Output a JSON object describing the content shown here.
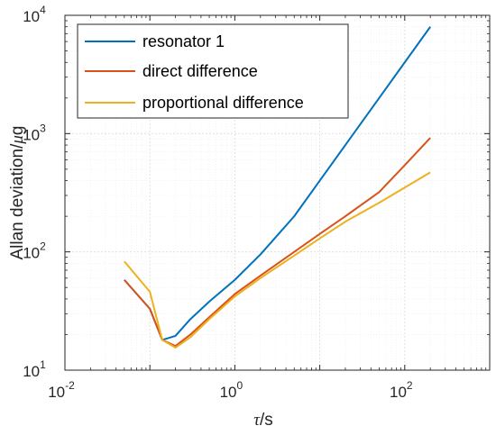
{
  "chart_data": {
    "type": "line",
    "xlabel_italic": "τ",
    "xlabel_rest": "/s",
    "ylabel_main": "Allan deviation/",
    "ylabel_mu": "μ",
    "ylabel_unit": "g",
    "x_scale": "log",
    "y_scale": "log",
    "xlim": [
      0.01,
      1000
    ],
    "ylim": [
      10,
      10000
    ],
    "grid": true,
    "legend_position": "top-left",
    "x_ticks": [
      {
        "base": "10",
        "exp": "-2"
      },
      {
        "base": "10",
        "exp": "0"
      },
      {
        "base": "10",
        "exp": "2"
      }
    ],
    "y_ticks": [
      {
        "base": "10",
        "exp": "1"
      },
      {
        "base": "10",
        "exp": "2"
      },
      {
        "base": "10",
        "exp": "3"
      },
      {
        "base": "10",
        "exp": "4"
      }
    ],
    "series": [
      {
        "name": "resonator 1",
        "color": "#0072BD",
        "x": [
          0.05,
          0.1,
          0.14,
          0.2,
          0.3,
          0.5,
          1,
          2,
          5,
          10,
          20,
          50,
          100,
          200
        ],
        "y": [
          58,
          33,
          18,
          19.5,
          27,
          38,
          58,
          95,
          200,
          400,
          800,
          2000,
          4000,
          8000
        ]
      },
      {
        "name": "direct difference",
        "color": "#D95319",
        "x": [
          0.05,
          0.1,
          0.14,
          0.2,
          0.3,
          0.5,
          1,
          2,
          5,
          10,
          20,
          50,
          100,
          200
        ],
        "y": [
          58,
          33,
          18,
          16,
          20,
          28,
          44,
          63,
          100,
          142,
          200,
          320,
          540,
          920
        ]
      },
      {
        "name": "proportional difference",
        "color": "#EDB120",
        "x": [
          0.05,
          0.1,
          0.14,
          0.2,
          0.3,
          0.5,
          1,
          2,
          5,
          10,
          20,
          50,
          100,
          200
        ],
        "y": [
          83,
          46,
          18,
          15.5,
          19,
          27,
          42,
          60,
          93,
          130,
          180,
          260,
          350,
          470
        ]
      }
    ]
  }
}
